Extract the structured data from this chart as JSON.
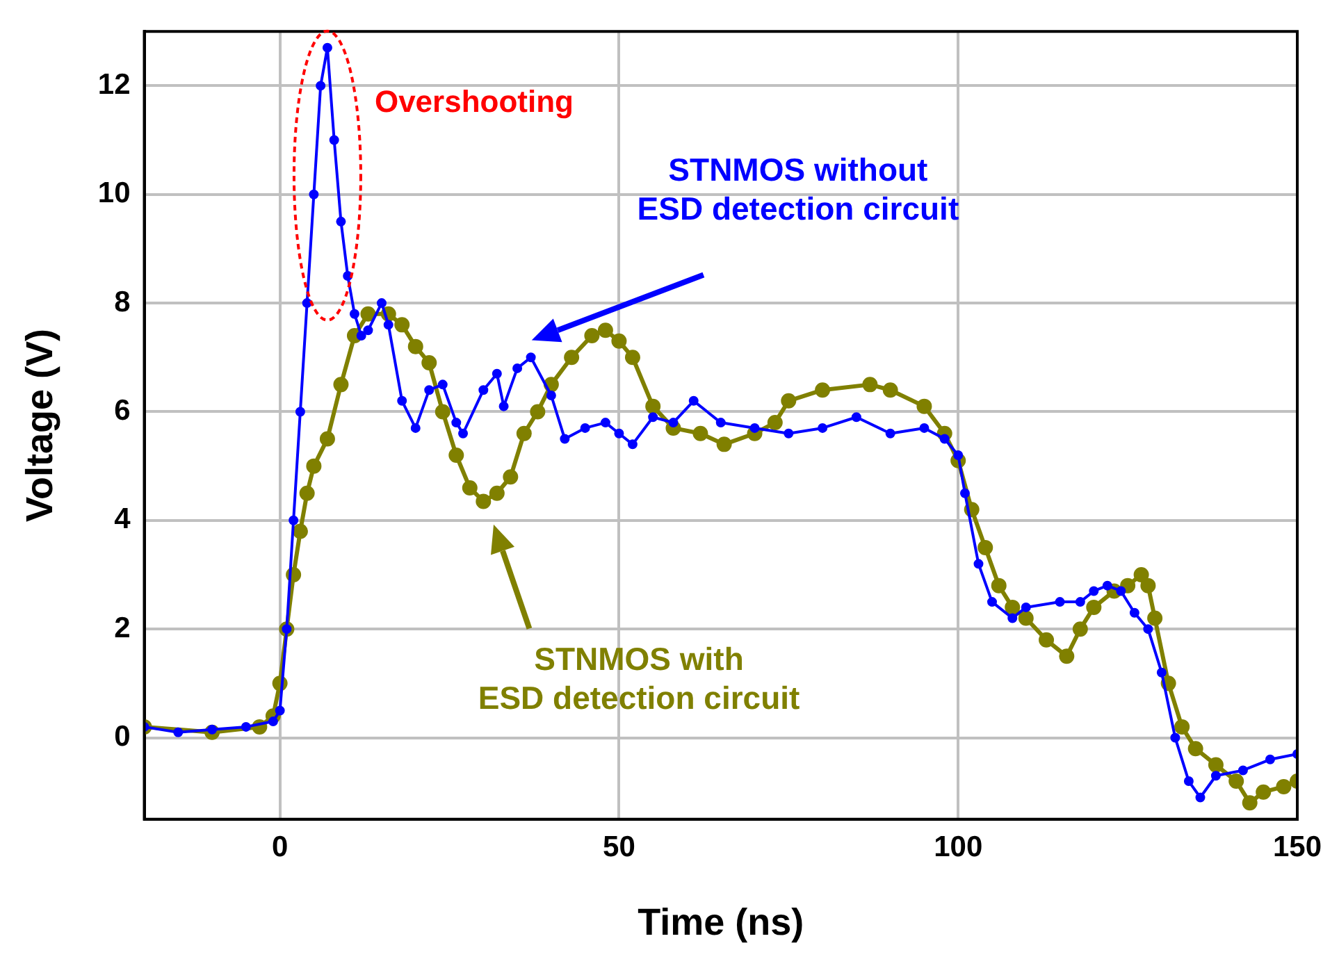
{
  "chart_data": {
    "type": "line",
    "xlabel": "Time (ns)",
    "ylabel": "Voltage (V)",
    "xlim": [
      -20,
      150
    ],
    "ylim": [
      -1.5,
      13
    ],
    "xticks": [
      0,
      50,
      100,
      150
    ],
    "yticks": [
      0,
      2,
      4,
      6,
      8,
      10,
      12
    ],
    "grid": true,
    "legend": false,
    "marker": "circle",
    "line_style": "solid",
    "annotations": [
      {
        "text": "Overshooting",
        "x": 7,
        "y": 12.7
      }
    ],
    "series": [
      {
        "name": "STNMOS without ESD detection circuit",
        "color": "#0000ff",
        "x": [
          -20,
          -15,
          -10,
          -5,
          -1,
          0,
          1,
          2,
          3,
          4,
          5,
          6,
          7,
          8,
          9,
          10,
          11,
          12,
          13,
          15,
          16,
          18,
          20,
          22,
          24,
          26,
          27,
          30,
          32,
          33,
          35,
          37,
          40,
          42,
          45,
          48,
          50,
          52,
          55,
          58,
          61,
          65,
          70,
          75,
          80,
          85,
          90,
          95,
          98,
          100,
          101,
          103,
          105,
          108,
          110,
          115,
          118,
          120,
          122,
          124,
          126,
          128,
          130,
          132,
          134,
          135.7,
          138,
          142,
          146,
          150
        ],
        "values": [
          0.2,
          0.1,
          0.15,
          0.2,
          0.3,
          0.5,
          2,
          4,
          6,
          8,
          10,
          12,
          12.7,
          11,
          9.5,
          8.5,
          7.8,
          7.4,
          7.5,
          8,
          7.6,
          6.2,
          5.7,
          6.4,
          6.5,
          5.8,
          5.6,
          6.4,
          6.7,
          6.1,
          6.8,
          7,
          6.3,
          5.5,
          5.7,
          5.8,
          5.6,
          5.4,
          5.9,
          5.8,
          6.2,
          5.8,
          5.7,
          5.6,
          5.7,
          5.9,
          5.6,
          5.7,
          5.5,
          5.2,
          4.5,
          3.2,
          2.5,
          2.2,
          2.4,
          2.5,
          2.5,
          2.7,
          2.8,
          2.7,
          2.3,
          2,
          1.2,
          0,
          -0.8,
          -1.1,
          -0.7,
          -0.6,
          -0.4,
          -0.3
        ]
      },
      {
        "name": "STNMOS with ESD detection circuit",
        "color": "#808000",
        "x": [
          -20,
          -10,
          -3,
          -1,
          0,
          1,
          2,
          3,
          4,
          5,
          7,
          9,
          11,
          13,
          16,
          18,
          20,
          22,
          24,
          26,
          28,
          30,
          32,
          34,
          36,
          38,
          40,
          43,
          46,
          48,
          50,
          52,
          55,
          58,
          62,
          65.5,
          70,
          73,
          75,
          80,
          87,
          90,
          95,
          98,
          100,
          102,
          104,
          106,
          108,
          110,
          113,
          116,
          118,
          120,
          123,
          125,
          127,
          128,
          129,
          131,
          133,
          135,
          138,
          141,
          143,
          145,
          148,
          150
        ],
        "values": [
          0.2,
          0.1,
          0.2,
          0.4,
          1,
          2,
          3,
          3.8,
          4.5,
          5,
          5.5,
          6.5,
          7.4,
          7.8,
          7.8,
          7.6,
          7.2,
          6.9,
          6,
          5.2,
          4.6,
          4.35,
          4.5,
          4.8,
          5.6,
          6,
          6.5,
          7,
          7.4,
          7.5,
          7.3,
          7,
          6.1,
          5.7,
          5.6,
          5.4,
          5.6,
          5.8,
          6.2,
          6.4,
          6.5,
          6.4,
          6.1,
          5.6,
          5.1,
          4.2,
          3.5,
          2.8,
          2.4,
          2.2,
          1.8,
          1.5,
          2,
          2.4,
          2.7,
          2.8,
          3,
          2.8,
          2.2,
          1,
          0.2,
          -0.2,
          -0.5,
          -0.8,
          -1.2,
          -1,
          -0.9,
          -0.8
        ]
      }
    ]
  }
}
